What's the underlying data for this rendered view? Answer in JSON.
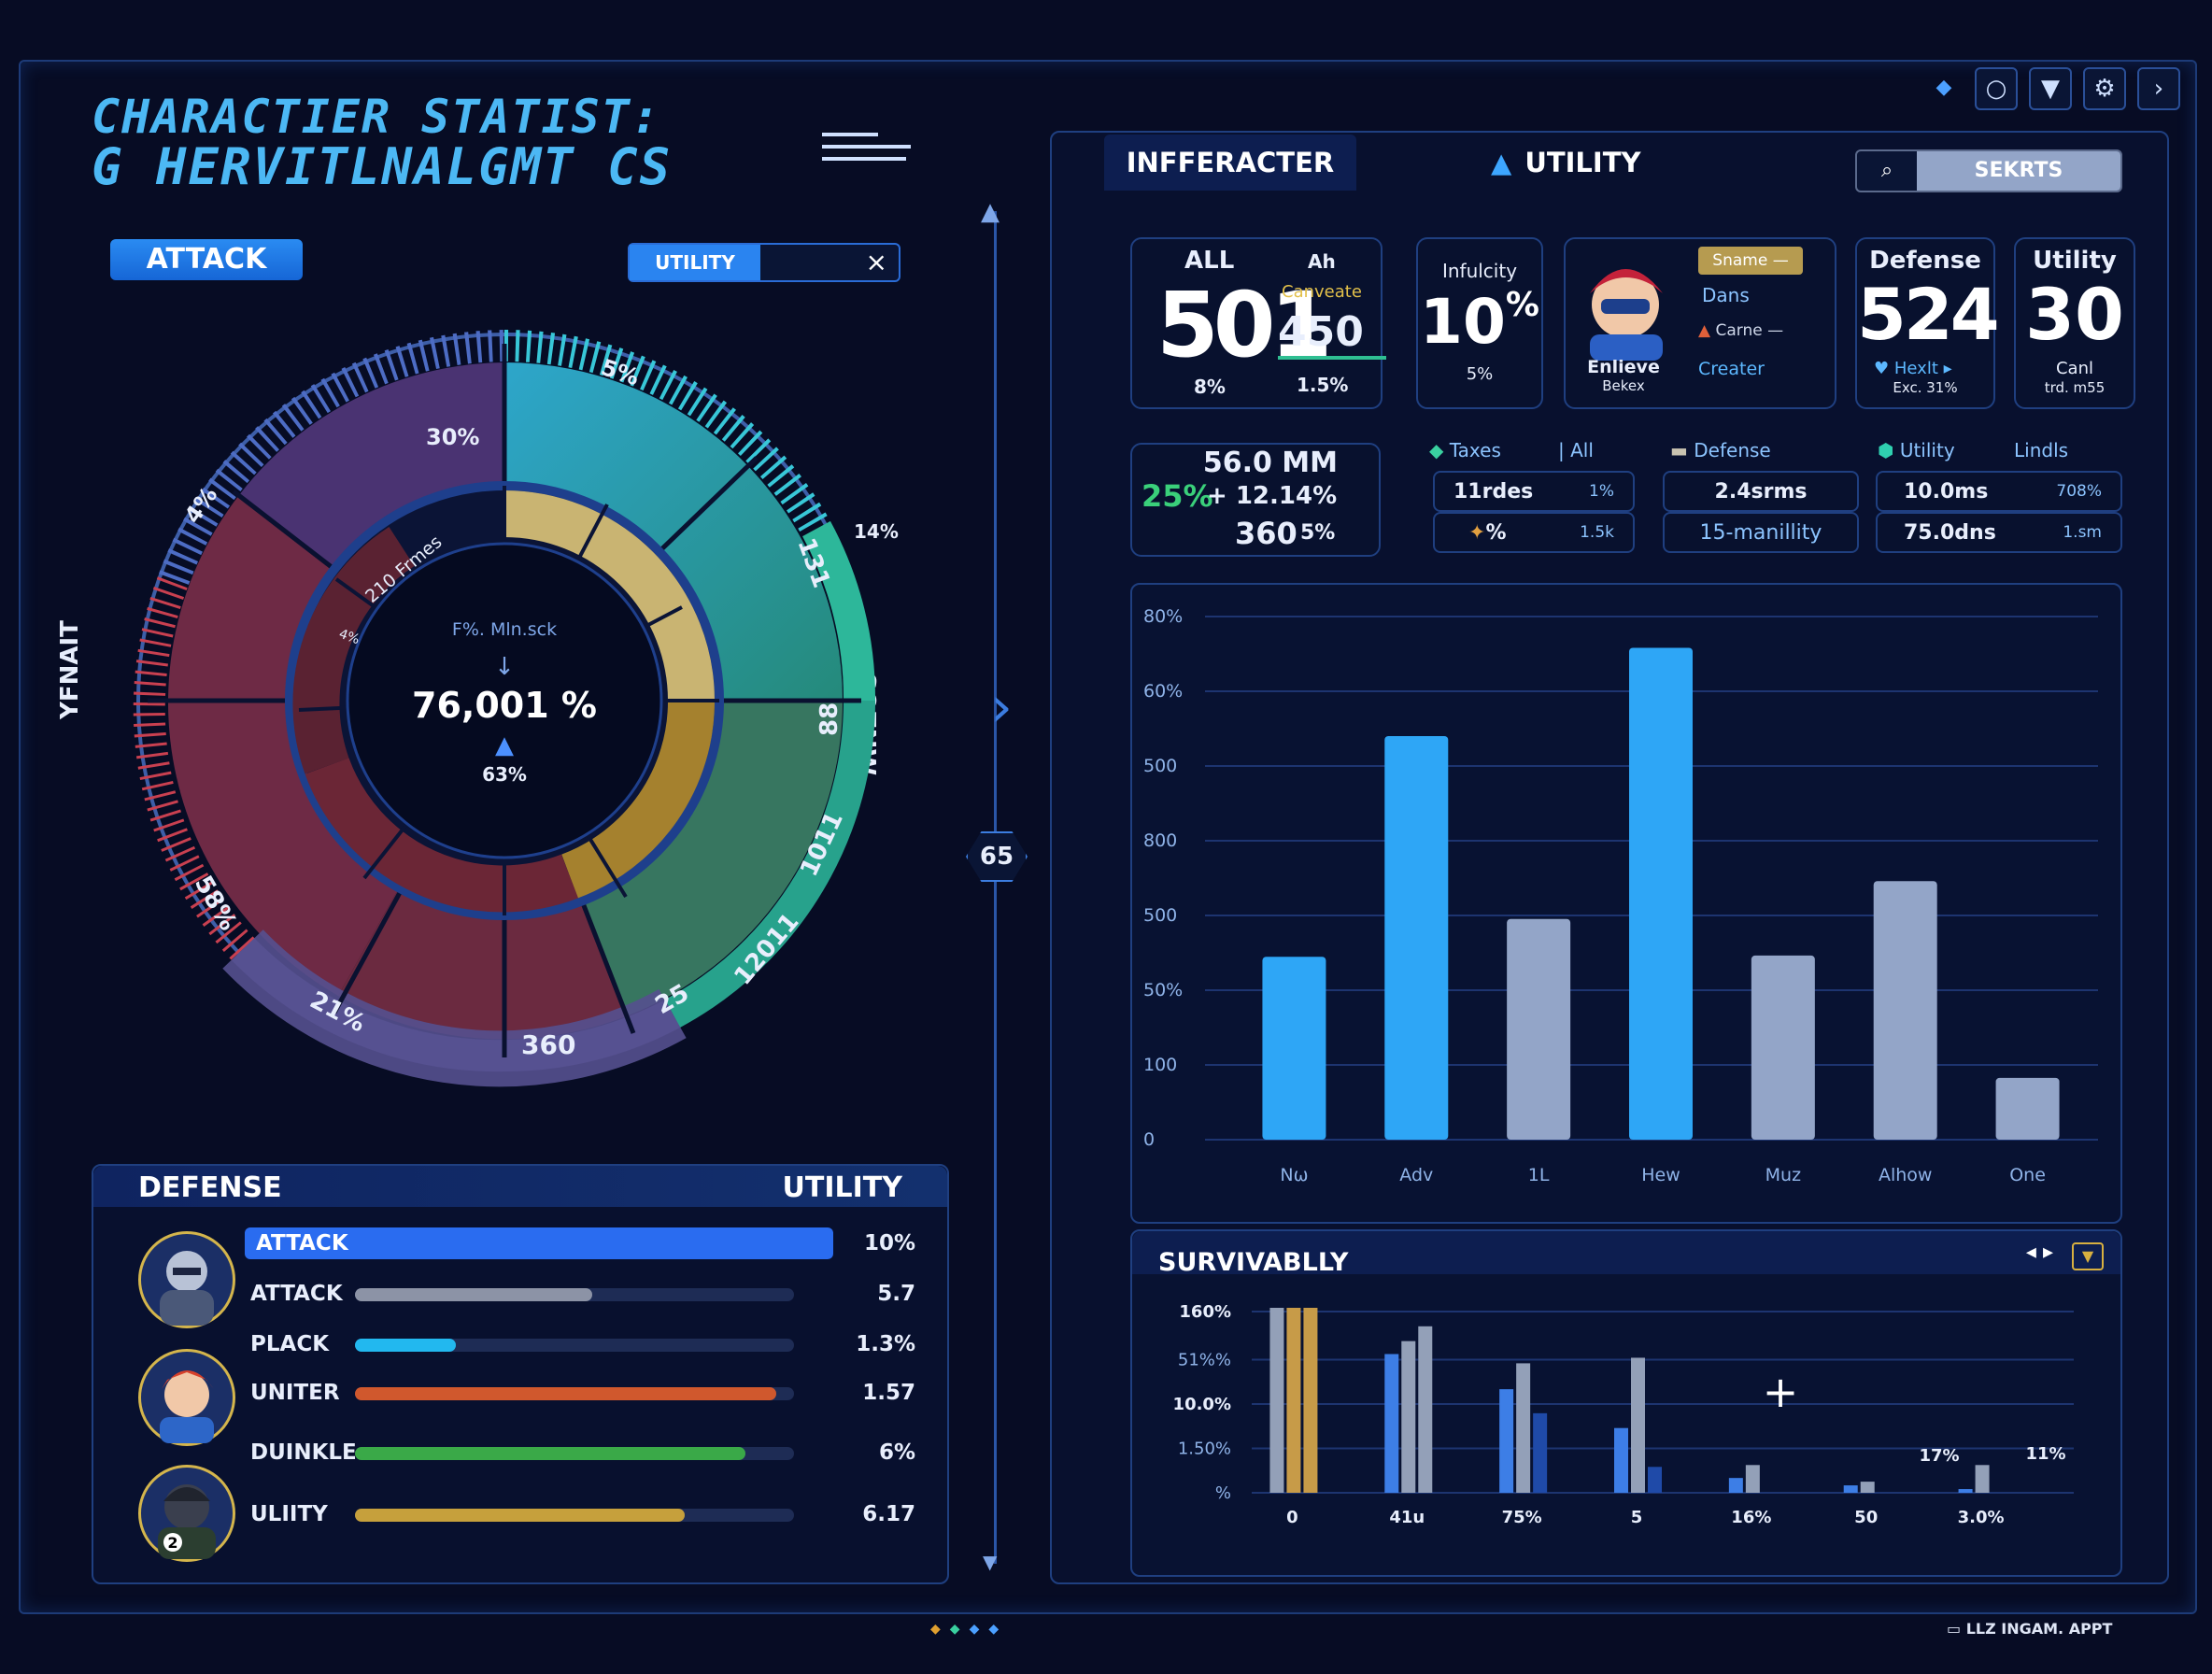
{
  "title": {
    "line1": "CHARACTIER STATIST:",
    "line2": "G HERVITLNALGMT CS"
  },
  "left": {
    "attack_tab": "ATTACK",
    "utility_select": "UTILITY",
    "close_glyph": "×",
    "side_label_left": "YFNAIT",
    "side_label_right": "SOZNW",
    "divider_badge": "65",
    "ring_labels": {
      "pct30": "30%",
      "pct4": "4%",
      "pct5": "5%",
      "pct14": "14%",
      "n131": "131",
      "n88": "88",
      "n1011": "1011",
      "n12011": "12011",
      "n25": "25",
      "n360": "360",
      "pct21": "21%",
      "pct58": "58%",
      "frames": "210 Frmes",
      "small": "4%"
    },
    "center": {
      "caption": "F%. Mln.sck",
      "value": "76,001 %",
      "sub": "63%"
    }
  },
  "defense_panel": {
    "header_left": "DEFENSE",
    "header_right": "UTILITY",
    "rows": [
      {
        "label": "ATTACK",
        "value": "10%",
        "fill": 1.0,
        "color": "#2a6cf0"
      },
      {
        "label": "ATTACK",
        "value": "5.7",
        "fill": 0.54,
        "color": "#8c93a6"
      },
      {
        "label": "PLACK",
        "value": "1.3%",
        "fill": 0.23,
        "color": "#22b8ef"
      },
      {
        "label": "UNITER",
        "value": "1.57",
        "fill": 0.96,
        "color": "#d0582d"
      },
      {
        "label": "DUINKLE",
        "value": "6%",
        "fill": 0.89,
        "color": "#3aa948"
      },
      {
        "label": "ULIITY",
        "value": "6.17",
        "fill": 0.75,
        "color": "#c6a03c"
      }
    ]
  },
  "right": {
    "tab_active": "INFFERACTER",
    "tab_utility": "UTILITY",
    "search_label": "SEKRTS",
    "card_all": {
      "label": "ALL",
      "value": "501",
      "sub": "8%",
      "col_label": "Ah",
      "col_sub": "Canveate",
      "col_value": "450",
      "col_pct": "1.5%"
    },
    "card_influcity": {
      "label": "Infulcity",
      "value": "10",
      "unit": "%",
      "sub": "5%"
    },
    "card_char": {
      "badge": "Sname —",
      "name": "Enlieve",
      "sub": "Bekex",
      "item1": "Dans",
      "item2": "Carne",
      "item3": "Creater"
    },
    "card_defense": {
      "label": "Defense",
      "value": "524",
      "sub1": "Hexlt",
      "sub2": "Exc. 31%"
    },
    "card_utility": {
      "label": "Utility",
      "value": "30",
      "sub1": "Canl",
      "sub2": "trd. m55"
    },
    "mini_stats": {
      "mm": "56.0 MM",
      "pct": "25%",
      "plus": "+ 12.14%",
      "num": "360",
      "num_pct": "5%"
    },
    "legend": {
      "taxes": "Taxes",
      "all": "All",
      "defense": "Defense",
      "utility": "Utility",
      "lindls": "Lindls"
    },
    "cells": {
      "c1": "11rdes",
      "c1b": "1%",
      "c2": "2.4srms",
      "c3": "10.0ms",
      "c3b": "708%",
      "c4": "%",
      "c4b": "1.5k",
      "c5": "15-manillity",
      "c6": "75.0dns",
      "c6b": "1.sm"
    },
    "survival_title": "SURVIVABLLY",
    "footer_brand": "LLZ  INGAM. APPT"
  },
  "chart_data": [
    {
      "type": "bar",
      "categories": [
        "Nω",
        "Adv",
        "1L",
        "Hew",
        "Muz",
        "Alhow",
        "One"
      ],
      "values": [
        290,
        640,
        350,
        780,
        292,
        410,
        98
      ],
      "colors": [
        "#2ea6f6",
        "#2ea6f6",
        "#93a5c8",
        "#2ea6f6",
        "#93a5c8",
        "#93a5c8",
        "#93a5c8"
      ],
      "yticks": [
        "80%",
        "60%",
        "500",
        "800",
        "500",
        "50%",
        "100",
        "0"
      ],
      "ylim": [
        0,
        800
      ]
    },
    {
      "type": "bar",
      "categories": [
        "0",
        "41u",
        "75%",
        "5",
        "16%",
        "50",
        "3.0%"
      ],
      "series_values": [
        [
          100,
          100,
          100
        ],
        [
          75,
          82,
          90
        ],
        [
          56,
          70,
          43
        ],
        [
          35,
          73,
          14
        ],
        [
          8,
          15,
          0
        ],
        [
          4,
          6,
          0
        ],
        [
          2,
          15,
          0
        ]
      ],
      "series_colors": [
        "#93a0b8",
        "#c79b48",
        "#3d7ee6"
      ],
      "yticks": [
        "160%",
        "51%%",
        "10.0%",
        "1.50%",
        "%"
      ],
      "annotations": [
        "17%",
        "11%"
      ],
      "ylim": [
        0,
        100
      ]
    }
  ]
}
